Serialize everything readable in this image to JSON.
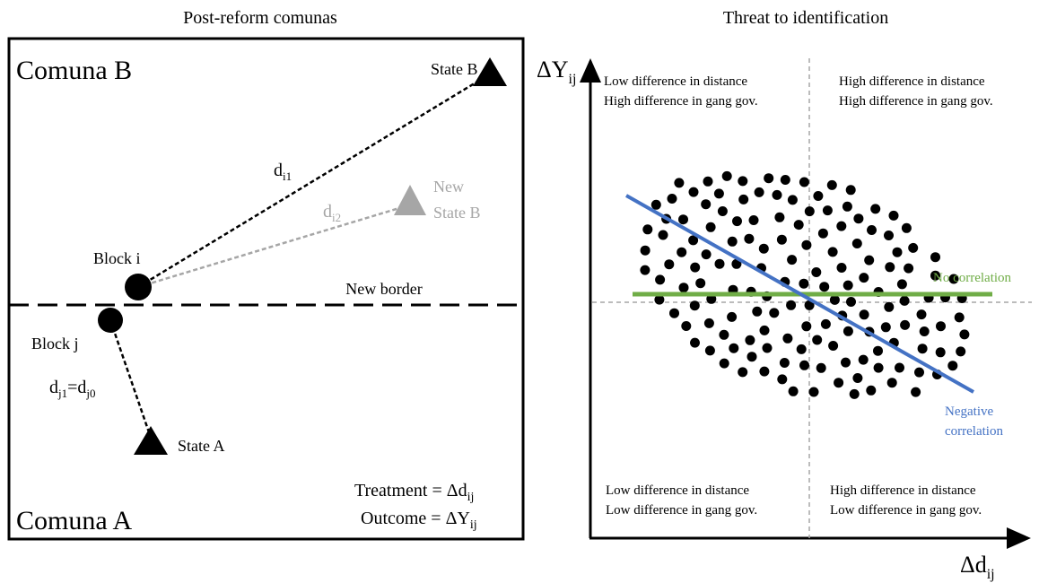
{
  "left_panel": {
    "title": "Post-reform comunas",
    "comuna_b": "Comuna B",
    "comuna_a": "Comuna A",
    "new_border": "New border",
    "state_b": "State B",
    "new_state_b": [
      "New",
      "State B"
    ],
    "state_a": "State A",
    "block_i": "Block i",
    "block_j": "Block j",
    "d_i1": {
      "base": "d",
      "sub": "i1"
    },
    "d_i2": {
      "base": "d",
      "sub": "i2"
    },
    "d_j": {
      "base1": "d",
      "sub1": "j1",
      "base2": "=d",
      "sub2": "j0"
    },
    "treatment": {
      "text": "Treatment = Δd",
      "sub": "ij"
    },
    "outcome": {
      "text": "Outcome = ΔY",
      "sub": "ij"
    }
  },
  "right_panel": {
    "title": "Threat to identification",
    "y_axis": {
      "base": "ΔY",
      "sub": "ij"
    },
    "x_axis": {
      "base": "Δd",
      "sub": "ij"
    },
    "top_left": [
      "Low difference in distance",
      "High difference in gang gov."
    ],
    "top_right": [
      "High difference in distance",
      "High difference in gang gov."
    ],
    "bottom_left": [
      "Low difference in distance",
      "Low difference in gang gov."
    ],
    "bottom_right": [
      "High difference in distance",
      "Low difference in gang gov."
    ],
    "no_correlation": "No correlation",
    "negative_correlation": [
      "Negative",
      "correlation"
    ]
  }
}
